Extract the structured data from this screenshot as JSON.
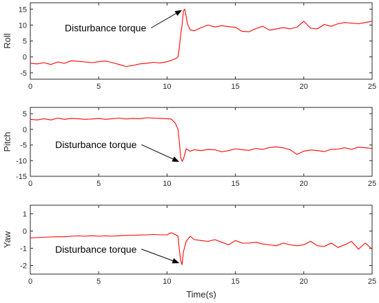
{
  "chart_data": [
    {
      "type": "line",
      "ylabel": "Roll",
      "xlim": [
        0,
        25
      ],
      "ylim": [
        -7,
        17
      ],
      "xticks": [
        0,
        5,
        10,
        15,
        20,
        25
      ],
      "yticks": [
        -5,
        0,
        5,
        10,
        15
      ],
      "annotation": {
        "text": "Disturbance torque",
        "arrow_to": [
          11.2,
          14.6
        ],
        "text_at": [
          5.5,
          8
        ]
      },
      "series": [
        {
          "color": "#ff0000",
          "x": [
            0,
            0.5,
            1,
            1.5,
            2,
            2.5,
            3,
            3.5,
            4,
            4.5,
            5,
            5.5,
            6,
            6.5,
            7,
            7.5,
            8,
            8.5,
            9,
            9.5,
            10,
            10.3,
            10.6,
            10.8,
            10.9,
            11,
            11.1,
            11.2,
            11.3,
            11.4,
            11.5,
            11.7,
            12,
            12.5,
            13,
            13.5,
            14,
            14.5,
            15,
            15.5,
            16,
            16.5,
            17,
            17.5,
            18,
            18.5,
            19,
            19.5,
            20,
            20.5,
            21,
            21.5,
            22,
            22.5,
            23,
            23.5,
            24,
            24.5,
            25
          ],
          "y": [
            -2,
            -2.2,
            -1.8,
            -2.4,
            -1.6,
            -2,
            -1.2,
            -1.4,
            -1.6,
            -1.8,
            -1.5,
            -1.3,
            -1.8,
            -2.4,
            -3,
            -2.7,
            -2.2,
            -2,
            -1.7,
            -1.9,
            -1.5,
            -1.1,
            -0.6,
            0,
            3,
            7,
            10,
            14.5,
            15,
            12.6,
            10.2,
            8.5,
            8.2,
            9.2,
            10,
            9.4,
            9.8,
            9.5,
            9.3,
            8,
            7.9,
            8.9,
            9.6,
            8.4,
            8.8,
            9.2,
            8.8,
            9.3,
            11.2,
            9,
            8.8,
            10.2,
            9.6,
            10.4,
            10.8,
            10.6,
            10.4,
            10.8,
            11.2
          ]
        }
      ]
    },
    {
      "type": "line",
      "ylabel": "Pitch",
      "xlim": [
        0,
        25
      ],
      "ylim": [
        -15,
        7
      ],
      "xticks": [
        0,
        5,
        10,
        15,
        20,
        25
      ],
      "yticks": [
        -15,
        -10,
        -5,
        0,
        5
      ],
      "annotation": {
        "text": "Disturbance torque",
        "arrow_to": [
          11.0,
          -10.3
        ],
        "text_at": [
          4.8,
          -6
        ]
      },
      "series": [
        {
          "color": "#ff0000",
          "x": [
            0,
            0.5,
            1,
            1.5,
            2,
            2.5,
            3,
            3.5,
            4,
            4.5,
            5,
            5.5,
            6,
            6.5,
            7,
            7.5,
            8,
            8.5,
            9,
            9.5,
            10,
            10.3,
            10.6,
            10.8,
            10.9,
            11,
            11.1,
            11.2,
            11.4,
            11.7,
            12,
            12.5,
            13,
            13.5,
            14,
            14.5,
            15,
            15.5,
            16,
            16.5,
            17,
            17.5,
            18,
            18.5,
            19,
            19.5,
            20,
            20.5,
            21,
            21.5,
            22,
            22.5,
            23,
            23.5,
            24,
            24.5,
            25
          ],
          "y": [
            3.2,
            3,
            3.4,
            3,
            3.6,
            3.2,
            3.5,
            3.4,
            3.2,
            3.3,
            3.5,
            3.2,
            3.4,
            3.6,
            3.3,
            3.5,
            3.4,
            3.7,
            3.6,
            3.5,
            3.4,
            3.3,
            2,
            0,
            -4,
            -9,
            -10.2,
            -9.5,
            -6.2,
            -7,
            -6.5,
            -6.8,
            -6.4,
            -6.5,
            -7.2,
            -6.8,
            -6.2,
            -6.5,
            -6.7,
            -6.1,
            -6.4,
            -5.8,
            -5.6,
            -5.9,
            -6.5,
            -8,
            -7,
            -6.6,
            -6.8,
            -7.1,
            -6.4,
            -6.3,
            -5.9,
            -6.4,
            -5.7,
            -5.9,
            -6.1
          ]
        }
      ]
    },
    {
      "type": "line",
      "ylabel": "Yaw",
      "xlabel": "Time(s)",
      "xlim": [
        0,
        25
      ],
      "ylim": [
        -2.5,
        1.5
      ],
      "xticks": [
        0,
        5,
        10,
        15,
        20,
        25
      ],
      "yticks": [
        -2,
        -1,
        0,
        1
      ],
      "annotation": {
        "text": "Disturbance torque",
        "arrow_to": [
          11.0,
          -1.85
        ],
        "text_at": [
          4.8,
          -1.25
        ]
      },
      "series": [
        {
          "color": "#ff0000",
          "x": [
            0,
            0.5,
            1,
            1.5,
            2,
            2.5,
            3,
            3.5,
            4,
            4.5,
            5,
            5.5,
            6,
            6.5,
            7,
            7.5,
            8,
            8.5,
            9,
            9.5,
            10,
            10.3,
            10.6,
            10.8,
            10.9,
            11,
            11.1,
            11.2,
            11.4,
            11.7,
            12,
            12.5,
            13,
            13.5,
            14,
            14.5,
            15,
            15.5,
            16,
            16.5,
            17,
            17.5,
            18,
            18.5,
            19,
            19.5,
            20,
            20.5,
            21,
            21.5,
            22,
            22.5,
            23,
            23.5,
            24,
            24.5,
            25
          ],
          "y": [
            -0.4,
            -0.38,
            -0.36,
            -0.34,
            -0.33,
            -0.33,
            -0.3,
            -0.28,
            -0.3,
            -0.27,
            -0.3,
            -0.28,
            -0.3,
            -0.27,
            -0.25,
            -0.24,
            -0.23,
            -0.22,
            -0.2,
            -0.22,
            -0.22,
            -0.1,
            -0.2,
            -0.3,
            -1.1,
            -1.7,
            -1.95,
            -1.2,
            -0.6,
            -0.3,
            -0.5,
            -0.55,
            -0.6,
            -0.5,
            -0.65,
            -0.8,
            -0.55,
            -0.7,
            -0.7,
            -0.65,
            -0.75,
            -0.8,
            -0.85,
            -0.7,
            -0.8,
            -0.85,
            -0.8,
            -0.6,
            -0.85,
            -0.9,
            -0.7,
            -0.95,
            -0.8,
            -0.6,
            -1.05,
            -0.7,
            -1.05
          ]
        }
      ]
    }
  ]
}
